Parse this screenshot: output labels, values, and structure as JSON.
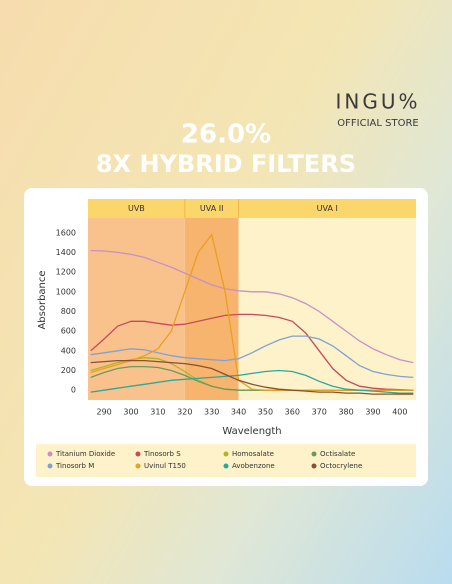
{
  "brand": "INGU%",
  "store": "OFFICIAL STORE",
  "headline": "26.0%",
  "subheadline": "8X HYBRID FILTERS",
  "chart_data": {
    "type": "line",
    "x_label": "Wavelength",
    "y_label": "Absorbance",
    "xlim": [
      284,
      406
    ],
    "ylim": [
      -100,
      1750
    ],
    "xticks": [
      290,
      300,
      310,
      320,
      330,
      340,
      350,
      360,
      370,
      380,
      390,
      400
    ],
    "yticks": [
      0,
      200,
      400,
      600,
      800,
      1000,
      1200,
      1400,
      1600
    ],
    "grid": false,
    "bands": [
      {
        "label": "UVB",
        "to": 320,
        "color": "#f9c28c"
      },
      {
        "label": "UVA II",
        "from": 320,
        "to": 340,
        "color": "#f6b46e"
      },
      {
        "label": "UVA I",
        "from": 340,
        "color": "#fdf2c9"
      }
    ],
    "x": [
      285,
      290,
      295,
      300,
      305,
      310,
      315,
      320,
      325,
      330,
      335,
      340,
      345,
      350,
      355,
      360,
      365,
      370,
      375,
      380,
      385,
      390,
      395,
      400,
      405
    ],
    "series": [
      {
        "name": "Titanium Dioxide",
        "color": "#c98fc6",
        "values": [
          1420,
          1415,
          1400,
          1380,
          1350,
          1300,
          1250,
          1190,
          1130,
          1070,
          1030,
          1010,
          1000,
          1000,
          980,
          940,
          880,
          800,
          700,
          600,
          500,
          420,
          360,
          310,
          280
        ]
      },
      {
        "name": "Tinosorb S",
        "color": "#c84a5a",
        "values": [
          400,
          520,
          650,
          700,
          700,
          680,
          660,
          670,
          700,
          730,
          760,
          770,
          770,
          760,
          740,
          700,
          580,
          400,
          220,
          100,
          40,
          20,
          10,
          5,
          0
        ]
      },
      {
        "name": "Homosalate",
        "color": "#b3b41e",
        "values": [
          200,
          240,
          280,
          310,
          330,
          320,
          270,
          190,
          100,
          40,
          10,
          0,
          0,
          0,
          0,
          0,
          0,
          0,
          0,
          0,
          0,
          0,
          0,
          0,
          0
        ]
      },
      {
        "name": "Octisalate",
        "color": "#6a9a5a",
        "values": [
          130,
          180,
          220,
          240,
          240,
          230,
          200,
          150,
          90,
          40,
          10,
          0,
          0,
          0,
          0,
          0,
          0,
          0,
          0,
          0,
          0,
          0,
          0,
          0,
          0
        ]
      },
      {
        "name": "Tinosorb M",
        "color": "#7fa2d6",
        "values": [
          360,
          380,
          400,
          420,
          410,
          380,
          350,
          330,
          320,
          310,
          300,
          320,
          380,
          450,
          510,
          550,
          550,
          520,
          450,
          350,
          250,
          190,
          160,
          140,
          130
        ]
      },
      {
        "name": "Uvinul T150",
        "color": "#e8a020",
        "values": [
          180,
          220,
          260,
          300,
          350,
          420,
          600,
          1000,
          1400,
          1580,
          1000,
          100,
          10,
          0,
          0,
          0,
          0,
          0,
          0,
          0,
          0,
          0,
          0,
          0,
          0
        ]
      },
      {
        "name": "Avobenzone",
        "color": "#2aa89a",
        "values": [
          -20,
          0,
          20,
          40,
          60,
          80,
          100,
          110,
          120,
          130,
          140,
          150,
          170,
          190,
          200,
          190,
          150,
          90,
          40,
          10,
          0,
          -10,
          -20,
          -30,
          -30
        ]
      },
      {
        "name": "Octocrylene",
        "color": "#8a5030",
        "values": [
          280,
          290,
          300,
          300,
          300,
          290,
          280,
          270,
          250,
          220,
          160,
          100,
          60,
          30,
          10,
          0,
          -10,
          -20,
          -20,
          -30,
          -30,
          -40,
          -40,
          -40,
          -40
        ]
      }
    ]
  }
}
